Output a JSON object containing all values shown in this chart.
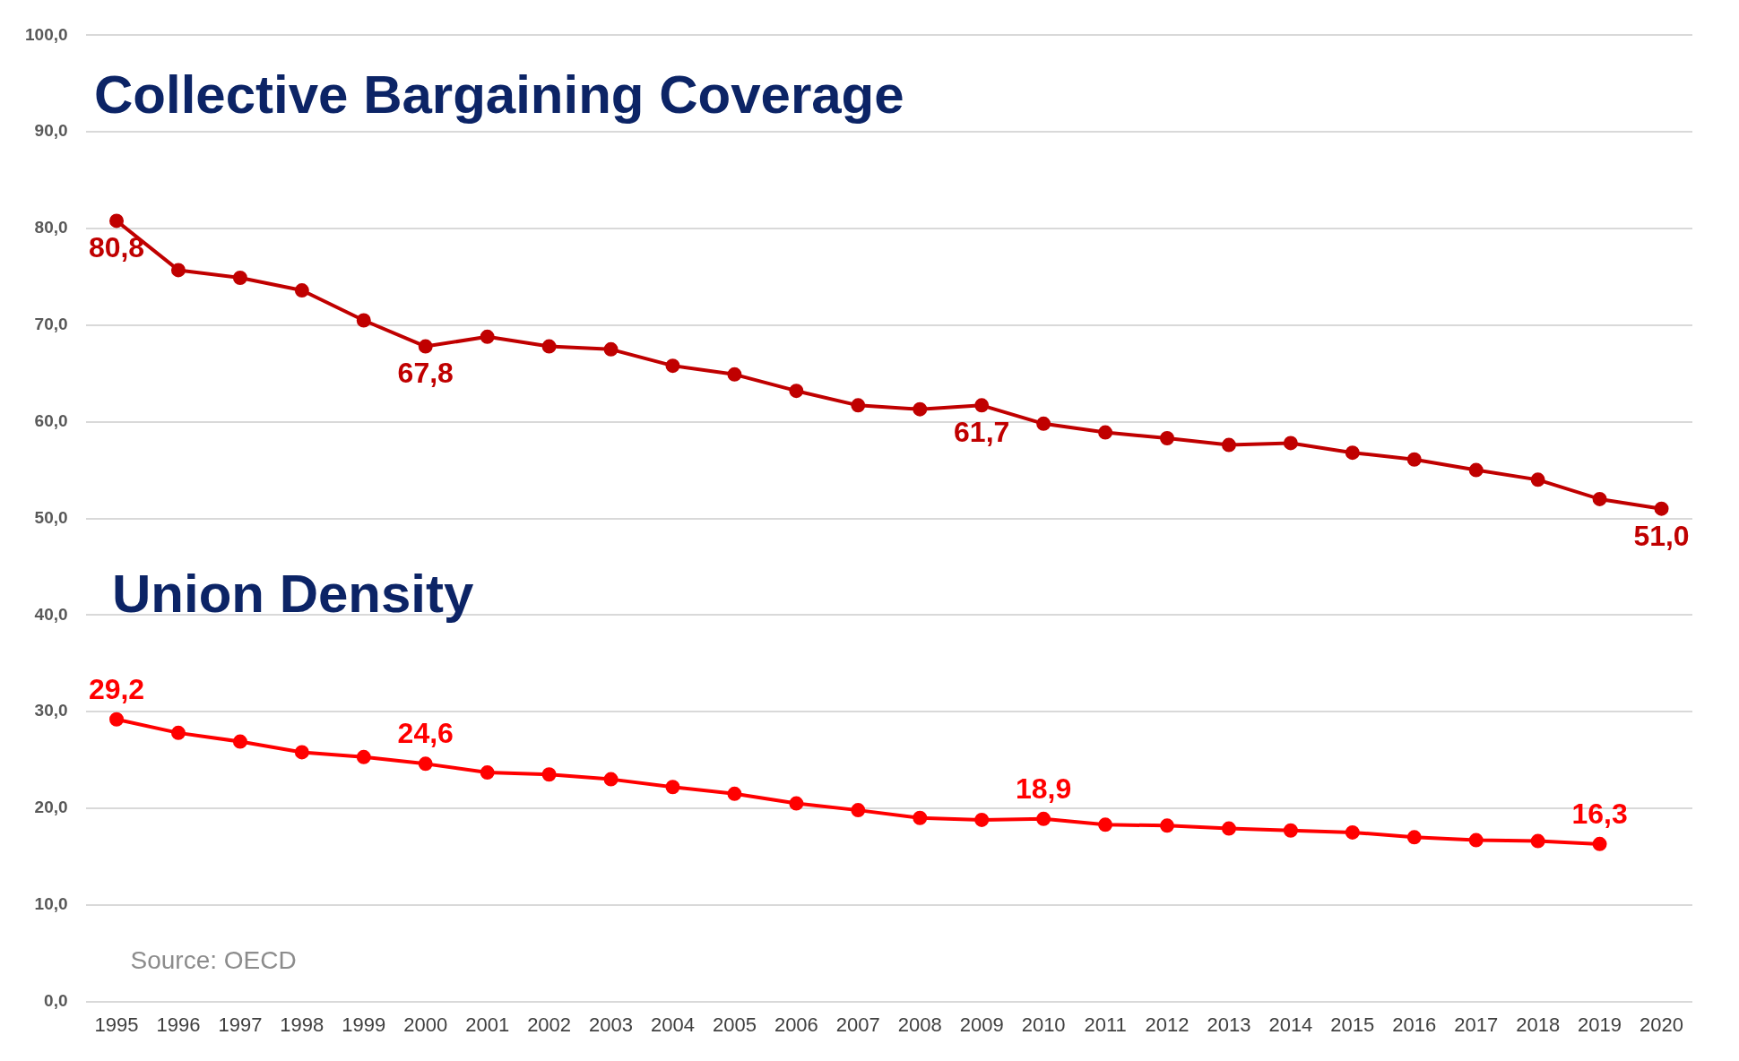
{
  "chart_data": {
    "type": "line",
    "categories": [
      "1995",
      "1996",
      "1997",
      "1998",
      "1999",
      "2000",
      "2001",
      "2002",
      "2003",
      "2004",
      "2005",
      "2006",
      "2007",
      "2008",
      "2009",
      "2010",
      "2011",
      "2012",
      "2013",
      "2014",
      "2015",
      "2016",
      "2017",
      "2018",
      "2019",
      "2020"
    ],
    "series": [
      {
        "name": "Collective Bargaining Coverage",
        "color": "#c00000",
        "values": [
          80.8,
          75.7,
          74.9,
          73.6,
          70.5,
          67.8,
          68.8,
          67.8,
          67.5,
          65.8,
          64.9,
          63.2,
          61.7,
          61.3,
          61.7,
          59.8,
          58.9,
          58.3,
          57.6,
          57.8,
          56.8,
          56.1,
          55.0,
          54.0,
          52.0,
          51.0
        ],
        "value_labels": [
          "80,8",
          null,
          null,
          null,
          null,
          "67,8",
          null,
          null,
          null,
          null,
          null,
          null,
          null,
          null,
          "61,7",
          null,
          null,
          null,
          null,
          null,
          null,
          null,
          null,
          null,
          null,
          "51,0"
        ]
      },
      {
        "name": "Union Density",
        "color": "#ff0000",
        "values": [
          29.2,
          27.8,
          26.9,
          25.8,
          25.3,
          24.6,
          23.7,
          23.5,
          23.0,
          22.2,
          21.5,
          20.5,
          19.8,
          19.0,
          18.8,
          18.9,
          18.3,
          18.2,
          17.9,
          17.7,
          17.5,
          17.0,
          16.7,
          16.6,
          16.3,
          null
        ],
        "value_labels": [
          "29,2",
          null,
          null,
          null,
          null,
          "24,6",
          null,
          null,
          null,
          null,
          null,
          null,
          null,
          null,
          null,
          "18,9",
          null,
          null,
          null,
          null,
          null,
          null,
          null,
          null,
          "16,3",
          null
        ]
      }
    ],
    "ylim": [
      0,
      100
    ],
    "yticks": [
      {
        "value": 0,
        "label": "0,0"
      },
      {
        "value": 10,
        "label": "10,0"
      },
      {
        "value": 20,
        "label": "20,0"
      },
      {
        "value": 30,
        "label": "30,0"
      },
      {
        "value": 40,
        "label": "40,0"
      },
      {
        "value": 50,
        "label": "50,0"
      },
      {
        "value": 60,
        "label": "60,0"
      },
      {
        "value": 70,
        "label": "70,0"
      },
      {
        "value": 80,
        "label": "80,0"
      },
      {
        "value": 90,
        "label": "90,0"
      },
      {
        "value": 100,
        "label": "100,0"
      }
    ],
    "grid": "y",
    "marker": "circle",
    "line_style": "solid",
    "legend": false,
    "annotations": [
      "Source: OECD"
    ]
  }
}
